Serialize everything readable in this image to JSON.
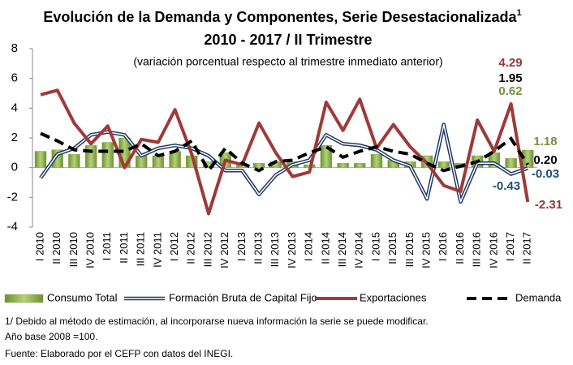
{
  "chart_data": {
    "type": "line",
    "title": "Evolución de la Demanda y Componentes, Serie Desestacionalizada",
    "title_note_mark": "1",
    "subtitle": "2010 - 2017 / II Trimestre",
    "subtitle_note": "(variación porcentual respecto al trimestre inmediato anterior)",
    "categories": [
      "I 2010",
      "II 2010",
      "III 2010",
      "IV 2010",
      "I 2011",
      "II 2011",
      "III 2011",
      "IV 2011",
      "I 2012",
      "II 2012",
      "III 2012",
      "IV 2012",
      "I 2013",
      "II 2013",
      "III 2013",
      "IV 2013",
      "I 2014",
      "II 2014",
      "III 2014",
      "IV 2014",
      "I 2015",
      "II 2015",
      "III 2015",
      "IV 2015",
      "I 2016",
      "II 2016",
      "III 2016",
      "IV 2016",
      "I 2017",
      "II 2017"
    ],
    "ylim": [
      -4,
      8
    ],
    "yticks": [
      -4,
      -2,
      0,
      2,
      4,
      6,
      8
    ],
    "series": [
      {
        "name": "Consumo Total",
        "kind": "bar",
        "color": "#8db04a",
        "label_color": "#76923c",
        "values": [
          1.1,
          1.2,
          0.9,
          1.5,
          1.7,
          2.0,
          0.8,
          0.8,
          1.1,
          0.8,
          0.4,
          1.0,
          0.2,
          0.3,
          0.4,
          0.4,
          0.2,
          1.5,
          0.3,
          0.3,
          0.9,
          0.5,
          0.4,
          0.8,
          0.4,
          0.3,
          0.8,
          1.0,
          0.62,
          1.18
        ],
        "value_labels": [
          null,
          null,
          null,
          null,
          null,
          null,
          null,
          null,
          null,
          null,
          null,
          null,
          null,
          null,
          null,
          null,
          null,
          null,
          null,
          null,
          null,
          null,
          null,
          null,
          null,
          null,
          null,
          null,
          "0.62",
          "1.18"
        ]
      },
      {
        "name": "Formación Bruta de Capital Fijo",
        "kind": "double-line",
        "color": "#1f3864",
        "label_color": "#1f4e79",
        "values": [
          -0.7,
          0.9,
          1.3,
          2.2,
          2.4,
          2.2,
          0.8,
          1.3,
          1.5,
          1.3,
          0.8,
          -0.2,
          -0.2,
          -1.8,
          -0.5,
          0.2,
          0.5,
          2.2,
          1.6,
          1.5,
          1.2,
          0.5,
          0.1,
          -2.1,
          2.9,
          -2.3,
          0.3,
          0.3,
          -0.43,
          -0.03
        ],
        "value_labels": [
          null,
          null,
          null,
          null,
          null,
          null,
          null,
          null,
          null,
          null,
          null,
          null,
          null,
          null,
          null,
          null,
          null,
          null,
          null,
          null,
          null,
          null,
          null,
          null,
          null,
          null,
          null,
          null,
          "-0.43",
          "-0.03"
        ]
      },
      {
        "name": "Exportaciones",
        "kind": "line",
        "color": "#9e3a38",
        "label_color": "#953735",
        "values": [
          4.9,
          5.2,
          3.0,
          1.6,
          2.8,
          0.0,
          1.9,
          1.7,
          3.9,
          0.9,
          -3.1,
          0.5,
          0.2,
          3.0,
          1.0,
          -0.6,
          -0.3,
          4.4,
          2.5,
          4.6,
          1.3,
          2.9,
          1.4,
          0.3,
          -1.2,
          -1.6,
          3.2,
          1.1,
          4.29,
          -2.31
        ],
        "value_labels": [
          null,
          null,
          null,
          null,
          null,
          null,
          null,
          null,
          null,
          null,
          null,
          null,
          null,
          null,
          null,
          null,
          null,
          null,
          null,
          null,
          null,
          null,
          null,
          null,
          null,
          null,
          null,
          null,
          "4.29",
          "-2.31"
        ]
      },
      {
        "name": "Demanda",
        "kind": "dashed",
        "color": "#000000",
        "label_color": "#000000",
        "values": [
          2.3,
          1.8,
          1.2,
          1.1,
          1.1,
          1.1,
          1.6,
          0.8,
          1.1,
          1.8,
          -0.2,
          1.3,
          0.3,
          -0.2,
          0.4,
          0.5,
          1.0,
          1.4,
          0.7,
          1.1,
          1.4,
          1.1,
          0.9,
          0.3,
          -0.2,
          0.1,
          0.4,
          1.1,
          1.95,
          0.2
        ],
        "value_labels": [
          null,
          null,
          null,
          null,
          null,
          null,
          null,
          null,
          null,
          null,
          null,
          null,
          null,
          null,
          null,
          null,
          null,
          null,
          null,
          null,
          null,
          null,
          null,
          null,
          null,
          null,
          null,
          null,
          "1.95",
          "0.20"
        ]
      }
    ],
    "notes": [
      "1/ Debido al método de estimación, al incorporarse nueva información la serie se puede modificar.",
      "Año base 2008 =100.",
      "Fuente: Elaborado por el CEFP con datos del INEGI."
    ]
  }
}
